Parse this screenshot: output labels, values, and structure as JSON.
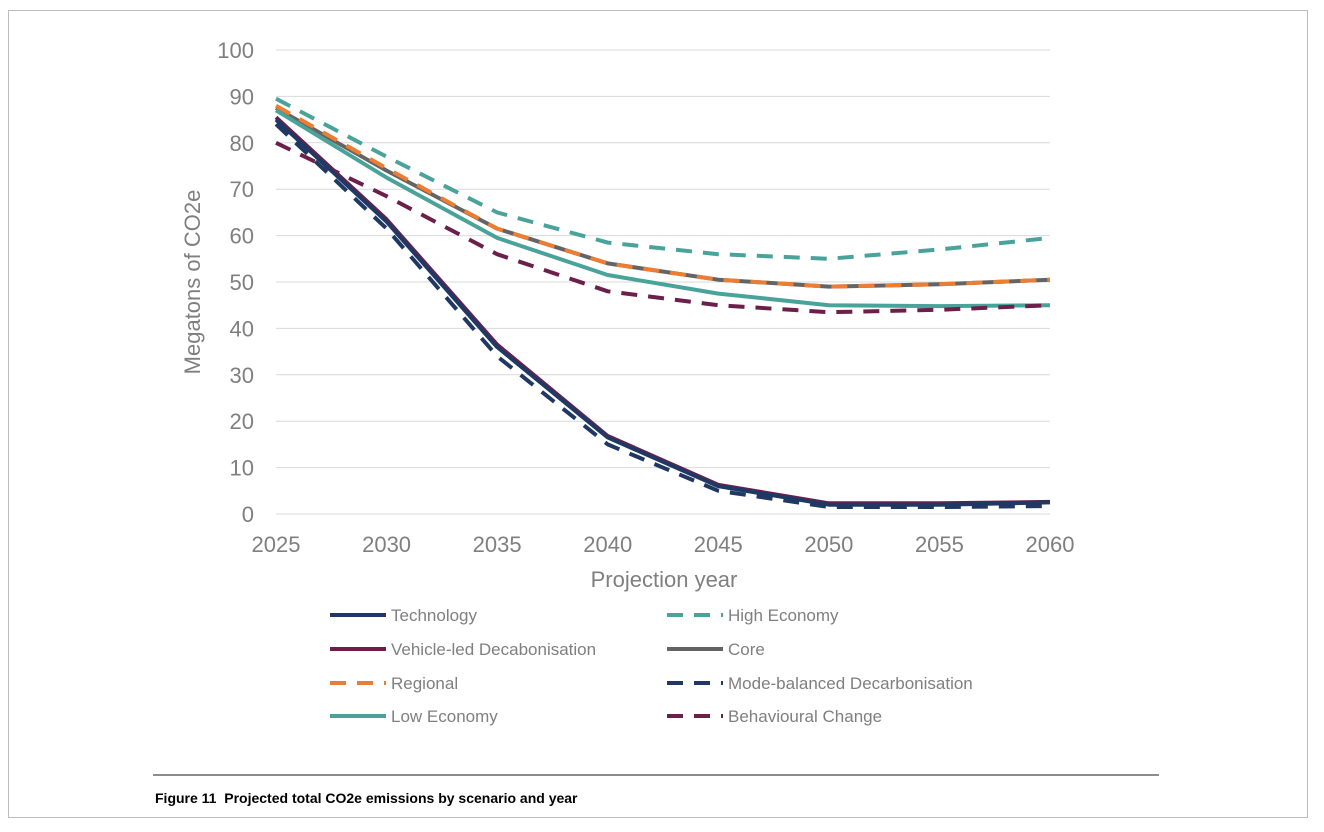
{
  "caption": "Figure 11  Projected total CO2e emissions by scenario and year",
  "chart_data": {
    "type": "line",
    "title": "",
    "xlabel": "Projection year",
    "ylabel": "Megatons of CO2e",
    "x": [
      2025,
      2030,
      2035,
      2040,
      2045,
      2050,
      2055,
      2060
    ],
    "x_ticks": [
      "2025",
      "2030",
      "2035",
      "2040",
      "2045",
      "2050",
      "2055",
      "2060"
    ],
    "ylim": [
      0,
      100
    ],
    "y_ticks": [
      "0",
      "10",
      "20",
      "30",
      "40",
      "50",
      "60",
      "70",
      "80",
      "90",
      "100"
    ],
    "grid": true,
    "legend_position": "bottom",
    "series": [
      {
        "name": "Technology",
        "color": "#1f3864",
        "dash": "solid",
        "values": [
          85,
          63,
          36,
          16.5,
          6,
          2,
          2,
          2.5
        ]
      },
      {
        "name": "High Economy",
        "color": "#4aa39a",
        "dash": "dashed",
        "values": [
          89.5,
          77,
          65,
          58.5,
          56,
          55,
          57,
          59.5
        ]
      },
      {
        "name": "Vehicle-led Decabonisation",
        "color": "#6b1f4a",
        "dash": "solid",
        "values": [
          85.5,
          63.5,
          36.5,
          16.8,
          6.3,
          2.3,
          2.3,
          2.6
        ]
      },
      {
        "name": "Core",
        "color": "#646464",
        "dash": "solid",
        "values": [
          87.5,
          74,
          61.5,
          54,
          50.5,
          49,
          49.5,
          50.5
        ]
      },
      {
        "name": "Regional",
        "color": "#ed7d31",
        "dash": "dashed",
        "values": [
          88,
          74.5,
          61.5,
          54,
          50.5,
          49,
          49.5,
          50.5
        ]
      },
      {
        "name": "Mode-balanced Decarbonisation",
        "color": "#1f3864",
        "dash": "dashed",
        "values": [
          84,
          61.5,
          34,
          15,
          5,
          1.5,
          1.5,
          1.7
        ]
      },
      {
        "name": "Low Economy",
        "color": "#4aa39a",
        "dash": "solid",
        "values": [
          87,
          72.5,
          59.5,
          51.5,
          47.5,
          45,
          44.8,
          45
        ]
      },
      {
        "name": "Behavioural Change",
        "color": "#6b1f4a",
        "dash": "dashed",
        "values": [
          80,
          68.5,
          56,
          48,
          45,
          43.5,
          44,
          45
        ]
      }
    ]
  }
}
